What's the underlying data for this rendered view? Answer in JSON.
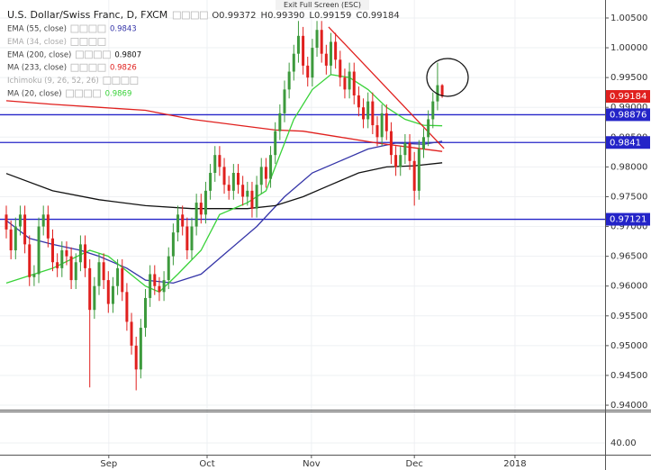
{
  "chart_data": {
    "type": "candlestick",
    "banner": "Exit Full Screen (ESC)",
    "title": "U.S. Dollar/Swiss Franc, D, FXCM",
    "ohlc_texts": [
      "O0.99372",
      "H0.99390",
      "L0.99159",
      "C0.99184"
    ],
    "up_color": "#3d9a3d",
    "down_color": "#e0201e",
    "candles": {
      "open": [
        0.972,
        0.9695,
        0.966,
        0.97,
        0.972,
        0.967,
        0.9615,
        0.962,
        0.97,
        0.972,
        0.968,
        0.964,
        0.963,
        0.966,
        0.965,
        0.961,
        0.964,
        0.967,
        0.963,
        0.956,
        0.96,
        0.964,
        0.961,
        0.957,
        0.96,
        0.963,
        0.959,
        0.954,
        0.95,
        0.946,
        0.953,
        0.958,
        0.962,
        0.96,
        0.959,
        0.961,
        0.965,
        0.969,
        0.972,
        0.97,
        0.966,
        0.97,
        0.974,
        0.972,
        0.976,
        0.979,
        0.982,
        0.98,
        0.977,
        0.976,
        0.979,
        0.977,
        0.975,
        0.976,
        0.973,
        0.977,
        0.98,
        0.978,
        0.982,
        0.986,
        0.989,
        0.993,
        0.996,
        0.999,
        1.002,
        0.997,
        0.995,
        1.0,
        1.003,
        0.999,
        0.997,
        1.001,
        0.998,
        0.995,
        0.993,
        0.996,
        0.992,
        0.99,
        0.988,
        0.991,
        0.987,
        0.985,
        0.989,
        0.986,
        0.982,
        0.98,
        0.982,
        0.984,
        0.981,
        0.976,
        0.983,
        0.985,
        0.988,
        0.991,
        0.99372
      ],
      "high": [
        0.9735,
        0.971,
        0.9715,
        0.9735,
        0.9735,
        0.9685,
        0.9635,
        0.9715,
        0.9735,
        0.9735,
        0.9695,
        0.9655,
        0.9675,
        0.9675,
        0.9665,
        0.9655,
        0.9685,
        0.9685,
        0.9645,
        0.9615,
        0.9655,
        0.9655,
        0.9625,
        0.9615,
        0.9645,
        0.9645,
        0.9605,
        0.9555,
        0.9515,
        0.9545,
        0.9595,
        0.9635,
        0.9635,
        0.9615,
        0.9625,
        0.9665,
        0.9705,
        0.9735,
        0.9735,
        0.9715,
        0.9715,
        0.9755,
        0.9755,
        0.9775,
        0.9805,
        0.9835,
        0.9835,
        0.9815,
        0.9785,
        0.9805,
        0.9805,
        0.9785,
        0.9775,
        0.9775,
        0.9785,
        0.9815,
        0.9815,
        0.9835,
        0.9875,
        0.9905,
        0.9945,
        0.9975,
        1.0005,
        1.0045,
        1.0035,
        0.9985,
        1.0015,
        1.0045,
        1.0045,
        1.0005,
        1.0025,
        1.0025,
        0.9995,
        0.9965,
        0.9975,
        0.9975,
        0.9935,
        0.9915,
        0.9925,
        0.9925,
        0.9885,
        0.9905,
        0.9905,
        0.9875,
        0.9835,
        0.9835,
        0.9855,
        0.9855,
        0.9825,
        0.9845,
        0.9865,
        0.9895,
        0.9925,
        0.9975,
        0.9939
      ],
      "low": [
        0.968,
        0.9645,
        0.9645,
        0.9685,
        0.9655,
        0.96,
        0.96,
        0.9605,
        0.9685,
        0.9665,
        0.9625,
        0.9615,
        0.9615,
        0.9635,
        0.9595,
        0.9595,
        0.9625,
        0.9615,
        0.943,
        0.9545,
        0.9585,
        0.9595,
        0.9555,
        0.9555,
        0.9585,
        0.9575,
        0.9525,
        0.9485,
        0.9425,
        0.9445,
        0.9515,
        0.9565,
        0.9585,
        0.9575,
        0.9575,
        0.9595,
        0.9635,
        0.9675,
        0.9685,
        0.9645,
        0.9645,
        0.9685,
        0.9705,
        0.9705,
        0.9745,
        0.9775,
        0.9785,
        0.9755,
        0.9745,
        0.9745,
        0.9755,
        0.9735,
        0.9735,
        0.9715,
        0.9715,
        0.9755,
        0.9765,
        0.9765,
        0.9805,
        0.9845,
        0.9875,
        0.9915,
        0.9945,
        0.9975,
        0.9955,
        0.9935,
        0.9935,
        0.9985,
        0.9975,
        0.9955,
        0.9955,
        0.9965,
        0.9935,
        0.9915,
        0.9915,
        0.9905,
        0.9885,
        0.9865,
        0.9865,
        0.9855,
        0.9835,
        0.9835,
        0.9845,
        0.9805,
        0.9785,
        0.9785,
        0.9805,
        0.9795,
        0.9735,
        0.9745,
        0.9815,
        0.9835,
        0.9865,
        0.9895,
        0.99159
      ],
      "close": [
        0.9695,
        0.966,
        0.97,
        0.972,
        0.967,
        0.9615,
        0.962,
        0.97,
        0.972,
        0.968,
        0.964,
        0.963,
        0.966,
        0.965,
        0.961,
        0.964,
        0.967,
        0.963,
        0.956,
        0.96,
        0.964,
        0.961,
        0.957,
        0.96,
        0.963,
        0.959,
        0.954,
        0.95,
        0.946,
        0.953,
        0.958,
        0.962,
        0.96,
        0.959,
        0.961,
        0.965,
        0.969,
        0.972,
        0.97,
        0.966,
        0.97,
        0.974,
        0.972,
        0.976,
        0.979,
        0.982,
        0.98,
        0.977,
        0.976,
        0.979,
        0.977,
        0.975,
        0.976,
        0.973,
        0.977,
        0.98,
        0.978,
        0.982,
        0.986,
        0.989,
        0.993,
        0.996,
        0.999,
        1.002,
        0.997,
        0.995,
        1.0,
        1.003,
        0.999,
        0.997,
        1.001,
        0.998,
        0.995,
        0.993,
        0.996,
        0.992,
        0.99,
        0.988,
        0.991,
        0.987,
        0.985,
        0.989,
        0.986,
        0.982,
        0.98,
        0.982,
        0.984,
        0.981,
        0.976,
        0.983,
        0.985,
        0.988,
        0.991,
        0.99372,
        0.99184
      ]
    },
    "indicators": [
      {
        "name": "EMA (55, close)",
        "last": 0.9843,
        "color": "#3535a8",
        "x": [
          0,
          5,
          10,
          16,
          20,
          26,
          30,
          36,
          42,
          48,
          54,
          60,
          66,
          72,
          78,
          84,
          90,
          94
        ],
        "values": [
          0.971,
          0.968,
          0.967,
          0.966,
          0.965,
          0.963,
          0.961,
          0.9605,
          0.962,
          0.966,
          0.97,
          0.975,
          0.979,
          0.981,
          0.983,
          0.984,
          0.9838,
          0.9843
        ]
      },
      {
        "name": "EMA (34, close)",
        "hidden": true
      },
      {
        "name": "EMA (200, close)",
        "last": 0.9807,
        "color": "#111111",
        "x": [
          0,
          10,
          20,
          30,
          40,
          46,
          52,
          58,
          64,
          70,
          76,
          82,
          88,
          94
        ],
        "values": [
          0.9789,
          0.976,
          0.9745,
          0.9735,
          0.973,
          0.973,
          0.973,
          0.9735,
          0.975,
          0.977,
          0.979,
          0.98,
          0.9802,
          0.9807
        ]
      },
      {
        "name": "MA (233, close)",
        "last": 0.9826,
        "color": "#e0201e",
        "x": [
          0,
          10,
          20,
          30,
          40,
          50,
          58,
          64,
          72,
          80,
          88,
          94
        ],
        "values": [
          0.9911,
          0.9905,
          0.99,
          0.9895,
          0.988,
          0.987,
          0.9862,
          0.986,
          0.985,
          0.984,
          0.9832,
          0.9826
        ]
      },
      {
        "name": "Ichimoku (9, 26, 52, 26)",
        "hidden": true
      },
      {
        "name": "MA (20, close)",
        "last": 0.9869,
        "color": "#39d239",
        "x": [
          0,
          10,
          18,
          22,
          30,
          33,
          37,
          42,
          46,
          52,
          56,
          62,
          66,
          70,
          74,
          78,
          82,
          86,
          90,
          94
        ],
        "values": [
          0.9605,
          0.963,
          0.966,
          0.965,
          0.96,
          0.959,
          0.962,
          0.966,
          0.972,
          0.974,
          0.976,
          0.988,
          0.993,
          0.9955,
          0.995,
          0.993,
          0.99,
          0.988,
          0.987,
          0.9869
        ]
      }
    ],
    "levels": [
      0.98876,
      0.9841,
      0.97121
    ],
    "level_color": "#2424c8",
    "trendline": {
      "x": [
        69.5,
        94.4
      ],
      "values": [
        1.0035,
        0.9831
      ],
      "color": "#e0201e"
    },
    "xlim": [
      -1.36,
      129.13
    ],
    "xticks": [
      {
        "value": 22.1,
        "label": "Sep"
      },
      {
        "value": 43.3,
        "label": "Oct"
      },
      {
        "value": 65.8,
        "label": "Nov"
      },
      {
        "value": 88,
        "label": "Dec"
      },
      {
        "value": 109.7,
        "label": "2018"
      }
    ],
    "ylim": [
      0.93925,
      1.00802
    ],
    "yticks": [
      {
        "value": 1.005,
        "label": "1.00500"
      },
      {
        "value": 1.0,
        "label": "1.00000"
      },
      {
        "value": 0.995,
        "label": "0.99500"
      },
      {
        "value": 0.99,
        "label": "0.99000"
      },
      {
        "value": 0.985,
        "label": "0.98500"
      },
      {
        "value": 0.98,
        "label": "0.98000"
      },
      {
        "value": 0.975,
        "label": "0.97500"
      },
      {
        "value": 0.97,
        "label": "0.97000"
      },
      {
        "value": 0.965,
        "label": "0.96500"
      },
      {
        "value": 0.96,
        "label": "0.96000"
      },
      {
        "value": 0.955,
        "label": "0.95500"
      },
      {
        "value": 0.95,
        "label": "0.95000"
      },
      {
        "value": 0.945,
        "label": "0.94500"
      },
      {
        "value": 0.94,
        "label": "0.94000"
      }
    ],
    "pane2": {
      "ylim": [
        35,
        53.5
      ],
      "yticks": [
        {
          "value": 40,
          "label": "40.00"
        }
      ]
    }
  }
}
